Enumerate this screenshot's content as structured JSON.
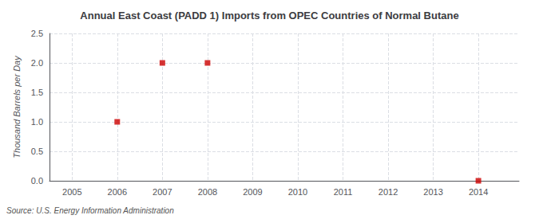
{
  "chart_data": {
    "type": "scatter",
    "title": "Annual East Coast (PADD 1) Imports from OPEC Countries of Normal Butane",
    "ylabel": "Thousand Barrels per Day",
    "source": "Source: U.S. Energy Information Administration",
    "x": [
      2006,
      2007,
      2008,
      2014
    ],
    "values": [
      1.0,
      2.0,
      2.0,
      0.0
    ],
    "color": "#CC0000",
    "marker": "square",
    "xlim": [
      2004.5,
      2014.9
    ],
    "xticks": [
      2005,
      2006,
      2007,
      2008,
      2009,
      2010,
      2011,
      2012,
      2013,
      2014
    ],
    "ylim": [
      0,
      2.5
    ],
    "yticks": [
      {
        "value": 0.0,
        "label": "0.0"
      },
      0.5,
      {
        "value": 1.0,
        "label": "1.0"
      },
      1.5,
      {
        "value": 2.0,
        "label": "2.0"
      },
      2.5
    ],
    "grid": true
  }
}
